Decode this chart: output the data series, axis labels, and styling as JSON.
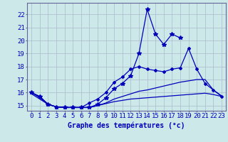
{
  "title": "Graphe des températures (°c)",
  "bg_color": "#cce8e8",
  "grid_color": "#aabbcc",
  "line_color": "#0000bb",
  "hours": [
    0,
    1,
    2,
    3,
    4,
    5,
    6,
    7,
    8,
    9,
    10,
    11,
    12,
    13,
    14,
    15,
    16,
    17,
    18,
    19,
    20,
    21,
    22,
    23
  ],
  "line1": [
    16.0,
    15.7,
    15.1,
    14.9,
    14.85,
    14.85,
    14.85,
    14.85,
    15.1,
    15.6,
    16.3,
    16.7,
    17.3,
    19.0,
    22.4,
    20.5,
    19.7,
    20.5,
    20.2,
    null,
    null,
    null,
    null,
    null
  ],
  "line2": [
    16.0,
    15.7,
    15.1,
    14.9,
    14.85,
    14.85,
    14.85,
    15.2,
    15.5,
    16.0,
    16.8,
    17.2,
    17.8,
    18.0,
    17.8,
    17.7,
    17.6,
    17.8,
    17.9,
    19.4,
    17.8,
    16.7,
    16.2,
    15.7
  ],
  "line3": [
    16.0,
    15.6,
    15.1,
    14.9,
    14.85,
    14.85,
    14.85,
    14.85,
    15.0,
    15.2,
    15.5,
    15.7,
    15.9,
    16.1,
    16.2,
    16.35,
    16.5,
    16.65,
    16.8,
    16.9,
    17.0,
    17.0,
    16.2,
    15.75
  ],
  "line4": [
    15.9,
    15.5,
    15.1,
    14.9,
    14.85,
    14.85,
    14.85,
    14.85,
    15.0,
    15.15,
    15.3,
    15.4,
    15.5,
    15.55,
    15.6,
    15.65,
    15.7,
    15.75,
    15.8,
    15.85,
    15.9,
    15.95,
    15.85,
    15.7
  ],
  "ylim": [
    14.6,
    22.9
  ],
  "yticks": [
    15,
    16,
    17,
    18,
    19,
    20,
    21,
    22
  ],
  "tick_fontsize": 6.5
}
